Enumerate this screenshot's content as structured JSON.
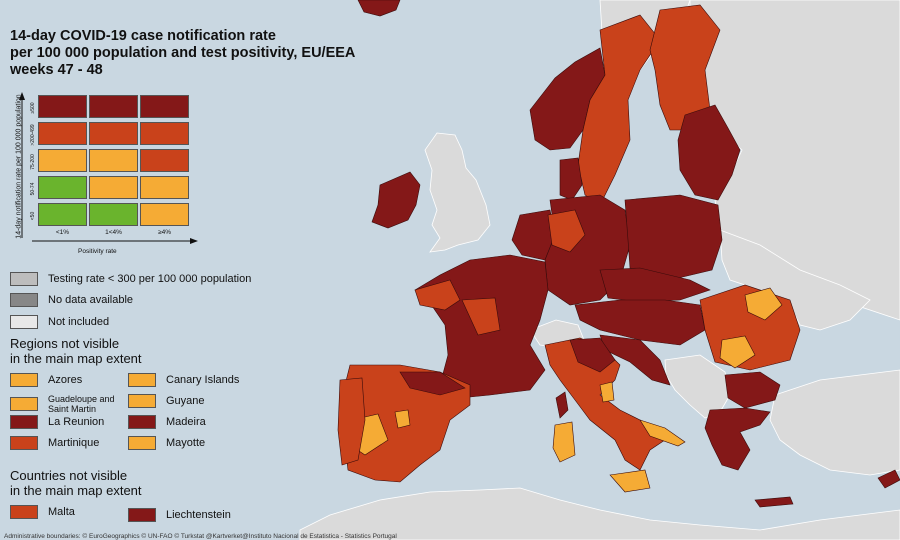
{
  "title": {
    "line1": "14-day COVID-19 case notification rate",
    "line2": "per 100 000 population and test positivity, EU/EEA",
    "line3": "weeks 47 - 48"
  },
  "colors": {
    "sea": "#c9d7e1",
    "land_gray": "#dadada",
    "green": "#6ab42d",
    "yellow": "#f5ab35",
    "orange": "#c9421b",
    "dark": "#841818",
    "test_low": "#bdbdbd",
    "no_data": "#878787",
    "not_included": "#e8e8e8"
  },
  "matrix": {
    "y_axis_label": "14-day notification rate per 100 000 population",
    "x_axis_label": "Positivity rate",
    "rows": [
      "≥500",
      ">200-499",
      "75-200",
      "50-74",
      "<50"
    ],
    "cols": [
      "<1%",
      "1<4%",
      "≥4%"
    ],
    "cells": [
      [
        "dark",
        "dark",
        "dark"
      ],
      [
        "orange",
        "orange",
        "orange"
      ],
      [
        "yellow",
        "yellow",
        "orange"
      ],
      [
        "green",
        "yellow",
        "yellow"
      ],
      [
        "green",
        "green",
        "yellow"
      ]
    ]
  },
  "legend": {
    "testing": "Testing rate < 300 per 100 000 population",
    "no_data": "No data available",
    "not_included": "Not included"
  },
  "regions": {
    "heading1": "Regions not visible",
    "heading2": "in the main map extent",
    "items": [
      {
        "label": "Azores",
        "color": "yellow"
      },
      {
        "label": "Canary Islands",
        "color": "yellow"
      },
      {
        "label": "Guadeloupe and Saint Martin",
        "color": "yellow"
      },
      {
        "label": "Guyane",
        "color": "yellow"
      },
      {
        "label": "La Reunion",
        "color": "dark"
      },
      {
        "label": "Madeira",
        "color": "dark"
      },
      {
        "label": "Martinique",
        "color": "orange"
      },
      {
        "label": "Mayotte",
        "color": "yellow"
      }
    ]
  },
  "countries": {
    "heading1": "Countries not visible",
    "heading2": "in the main map extent",
    "items": [
      {
        "label": "Malta",
        "color": "orange"
      },
      {
        "label": "Liechtenstein",
        "color": "dark"
      }
    ]
  },
  "footer": "Administrative boundaries: © EuroGeographics © UN-FAO © Turkstat @Kartverket@Instituto Nacional de Estatistica - Statistics Portugal"
}
